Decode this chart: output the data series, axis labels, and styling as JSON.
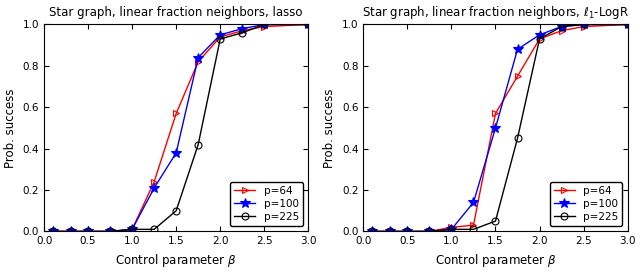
{
  "plot1": {
    "title": "Star graph, linear fraction neighbors, lasso",
    "xlabel": "Control parameter $\\beta$",
    "ylabel": "Prob. success",
    "xlim": [
      0,
      3
    ],
    "ylim": [
      0,
      1
    ],
    "xticks": [
      0,
      0.5,
      1,
      1.5,
      2,
      2.5,
      3
    ],
    "yticks": [
      0,
      0.2,
      0.4,
      0.6,
      0.8,
      1.0
    ],
    "series": [
      {
        "label": "p=64",
        "color": "red",
        "marker": ">",
        "markerfilled": false,
        "x": [
          0.1,
          0.3,
          0.5,
          0.75,
          1.0,
          1.25,
          1.5,
          1.75,
          2.0,
          2.25,
          2.5,
          3.0
        ],
        "y": [
          0.0,
          0.0,
          0.0,
          0.0,
          0.01,
          0.24,
          0.57,
          0.82,
          0.94,
          0.97,
          0.99,
          1.0
        ]
      },
      {
        "label": "p=100",
        "color": "blue",
        "marker": "*",
        "markerfilled": true,
        "x": [
          0.1,
          0.3,
          0.5,
          0.75,
          1.0,
          1.25,
          1.5,
          1.75,
          2.0,
          2.25,
          2.5,
          3.0
        ],
        "y": [
          0.0,
          0.0,
          0.0,
          0.0,
          0.01,
          0.21,
          0.38,
          0.84,
          0.95,
          0.98,
          1.0,
          1.0
        ]
      },
      {
        "label": "p=225",
        "color": "black",
        "marker": "o",
        "markerfilled": false,
        "x": [
          0.1,
          0.3,
          0.5,
          0.75,
          1.0,
          1.25,
          1.5,
          1.75,
          2.0,
          2.25,
          2.5,
          3.0
        ],
        "y": [
          0.0,
          0.0,
          0.0,
          0.0,
          0.01,
          0.01,
          0.1,
          0.42,
          0.93,
          0.96,
          1.0,
          1.0
        ]
      }
    ],
    "legend_loc": "lower right"
  },
  "plot2": {
    "title": "Star graph, linear fraction neighbors, $\\ell_1$-LogR",
    "xlabel": "Control parameter $\\beta$",
    "ylabel": "Prob. success",
    "xlim": [
      0,
      3
    ],
    "ylim": [
      0,
      1
    ],
    "xticks": [
      0,
      0.5,
      1,
      1.5,
      2,
      2.5,
      3
    ],
    "yticks": [
      0,
      0.2,
      0.4,
      0.6,
      0.8,
      1.0
    ],
    "series": [
      {
        "label": "p=64",
        "color": "red",
        "marker": ">",
        "markerfilled": false,
        "x": [
          0.1,
          0.3,
          0.5,
          0.75,
          1.0,
          1.25,
          1.5,
          1.75,
          2.0,
          2.25,
          2.5,
          3.0
        ],
        "y": [
          0.0,
          0.0,
          0.0,
          0.0,
          0.02,
          0.03,
          0.57,
          0.75,
          0.93,
          0.97,
          0.99,
          1.0
        ]
      },
      {
        "label": "p=100",
        "color": "blue",
        "marker": "*",
        "markerfilled": true,
        "x": [
          0.1,
          0.3,
          0.5,
          0.75,
          1.0,
          1.25,
          1.5,
          1.75,
          2.0,
          2.25,
          2.5,
          3.0
        ],
        "y": [
          0.0,
          0.0,
          0.0,
          0.0,
          0.01,
          0.14,
          0.5,
          0.88,
          0.95,
          0.99,
          1.0,
          1.0
        ]
      },
      {
        "label": "p=225",
        "color": "black",
        "marker": "o",
        "markerfilled": false,
        "x": [
          0.1,
          0.3,
          0.5,
          0.75,
          1.0,
          1.25,
          1.5,
          1.75,
          2.0,
          2.25,
          2.5,
          3.0
        ],
        "y": [
          0.0,
          0.0,
          0.0,
          0.0,
          0.01,
          0.01,
          0.05,
          0.45,
          0.93,
          0.99,
          1.0,
          1.0
        ]
      }
    ],
    "legend_loc": "lower right"
  },
  "background_color": "#ffffff",
  "fig_width": 6.4,
  "fig_height": 2.73,
  "dpi": 100
}
